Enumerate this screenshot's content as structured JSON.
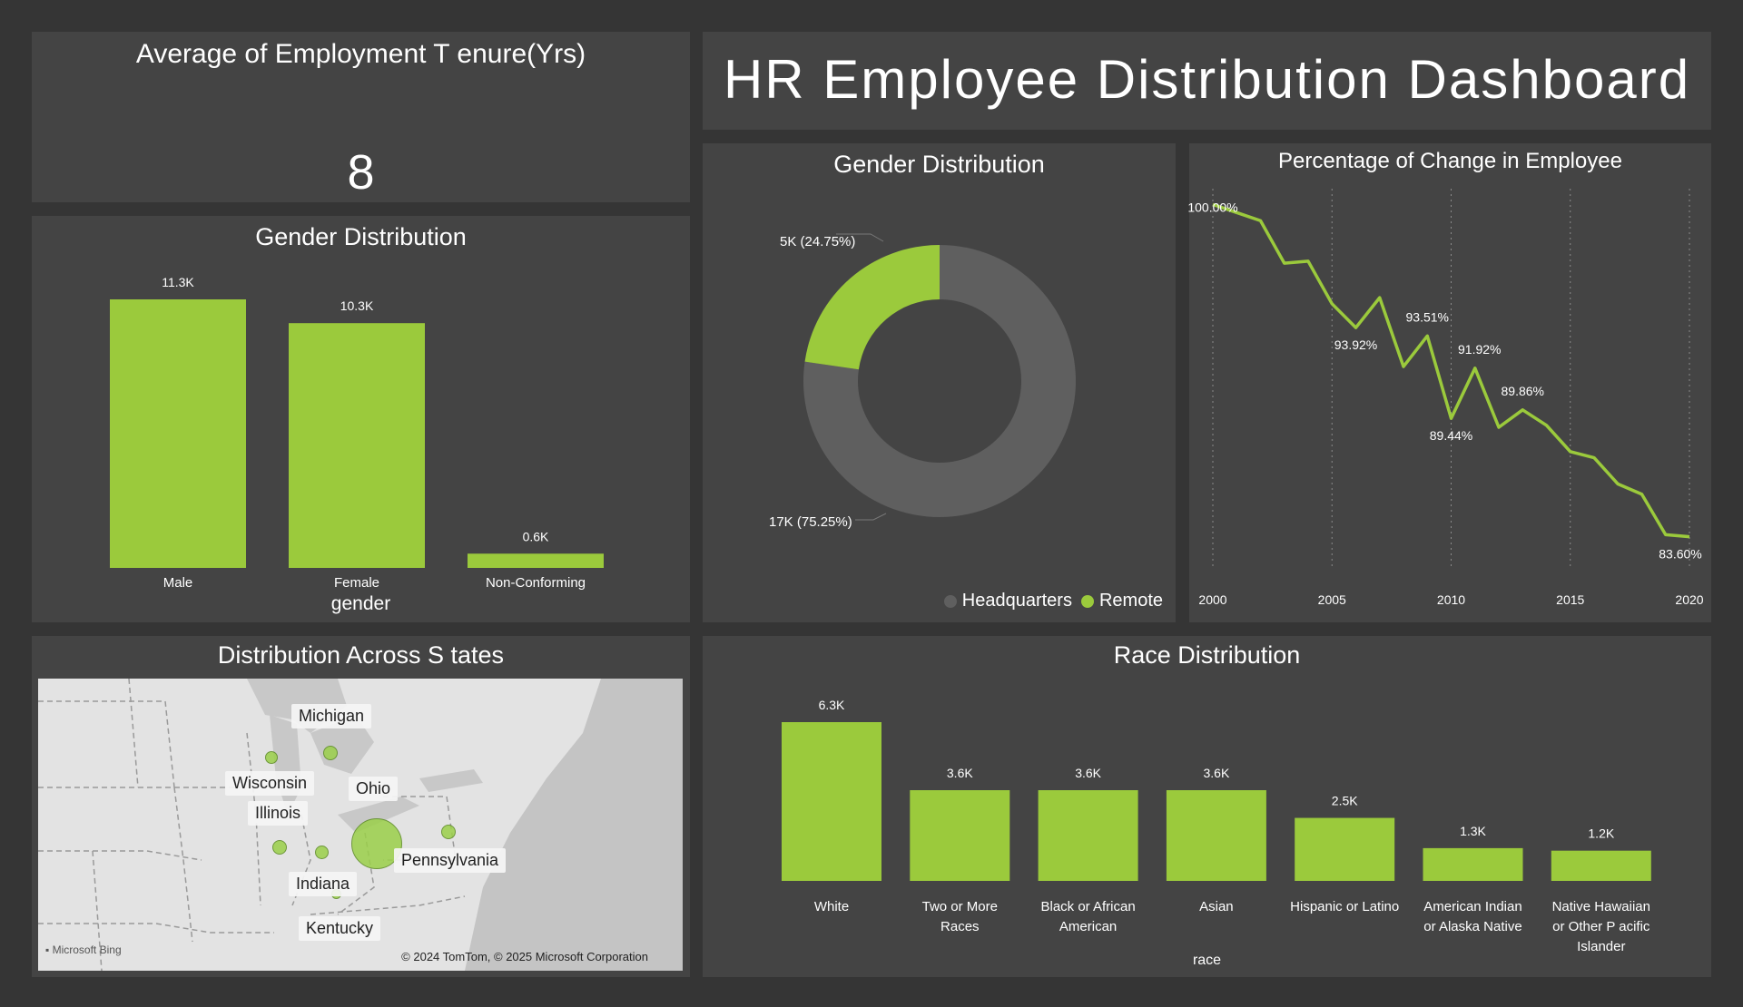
{
  "kpi": {
    "title": "Average of Employment T  enure(Yrs)",
    "value": "8"
  },
  "dashboard_title": "HR Employee Distribution Dashboard",
  "gender_bar": {
    "title": "Gender Distribution",
    "xlabel": "gender"
  },
  "donut": {
    "title": "Gender Distribution",
    "legend": [
      {
        "label": "Headquarters",
        "color": "#5f5f5f"
      },
      {
        "label": "Remote",
        "color": "#9bca3c"
      }
    ]
  },
  "line": {
    "title": "Percentage of Change in Employee"
  },
  "map": {
    "title": "Distribution Across S  tates",
    "labels": [
      "Michigan",
      "Wisconsin",
      "Ohio",
      "Illinois",
      "Pennsylvania",
      "Indiana",
      "Kentucky"
    ],
    "attribution": "© 2024 TomTom, © 2025 Microsoft Corporation",
    "brand": "Microsoft Bing"
  },
  "race_bar": {
    "title": "Race Distribution",
    "xlabel": "race"
  },
  "colors": {
    "accent": "#9bca3c",
    "panel": "#444444",
    "background": "#353535",
    "headquarters": "#5f5f5f"
  },
  "chart_data": [
    {
      "type": "bar",
      "title": "Gender Distribution",
      "xlabel": "gender",
      "categories": [
        "Male",
        "Female",
        "Non-Conforming"
      ],
      "values": [
        11300,
        10300,
        600
      ],
      "labels": [
        "11.3K",
        "10.3K",
        "0.6K"
      ]
    },
    {
      "type": "pie",
      "title": "Gender Distribution",
      "categories": [
        "Headquarters",
        "Remote"
      ],
      "values": [
        17000,
        5000
      ],
      "percent": [
        75.25,
        24.75
      ],
      "labels": [
        "17K (75.25%)",
        "5K (24.75%)"
      ]
    },
    {
      "type": "line",
      "title": "Percentage of Change in Employee",
      "x": [
        2000,
        2001,
        2002,
        2003,
        2004,
        2005,
        2006,
        2007,
        2008,
        2009,
        2010,
        2011,
        2012,
        2013,
        2014,
        2015,
        2016,
        2017,
        2018,
        2019,
        2020
      ],
      "y": [
        100.0,
        99.6,
        99.2,
        97.1,
        97.2,
        95.1,
        93.92,
        95.4,
        92.0,
        93.51,
        89.44,
        91.92,
        89.0,
        89.86,
        89.1,
        87.8,
        87.5,
        86.2,
        85.7,
        83.7,
        83.6
      ],
      "point_labels": [
        {
          "x": 2000,
          "label": "100.00%"
        },
        {
          "x": 2006,
          "label": "93.92%"
        },
        {
          "x": 2009,
          "label": "93.51%"
        },
        {
          "x": 2010,
          "label": "89.44%"
        },
        {
          "x": 2011,
          "label": "91.92%"
        },
        {
          "x": 2013,
          "label": "89.86%"
        },
        {
          "x": 2020,
          "label": "83.60%"
        }
      ],
      "xticks": [
        2000,
        2005,
        2010,
        2015,
        2020
      ],
      "ylim": [
        83,
        100.6
      ],
      "grid": "vertical dotted"
    },
    {
      "type": "bar",
      "title": "Race Distribution",
      "xlabel": "race",
      "categories": [
        "White",
        "Two or More Races",
        "Black or African American",
        "Asian",
        "Hispanic or Latino",
        "American Indian or Alaska Native",
        "Native Hawaiian or Other P acific Islander"
      ],
      "category_lines": [
        [
          "White"
        ],
        [
          "Two or More",
          "Races"
        ],
        [
          "Black or African",
          "American"
        ],
        [
          "Asian"
        ],
        [
          "Hispanic or Latino"
        ],
        [
          "American Indian",
          "or Alaska Native"
        ],
        [
          "Native Hawaiian",
          "or Other P acific",
          "Islander"
        ]
      ],
      "values": [
        6300,
        3600,
        3600,
        3600,
        2500,
        1300,
        1200
      ],
      "labels": [
        "6.3K",
        "3.6K",
        "3.6K",
        "3.6K",
        "2.5K",
        "1.3K",
        "1.2K"
      ]
    }
  ]
}
